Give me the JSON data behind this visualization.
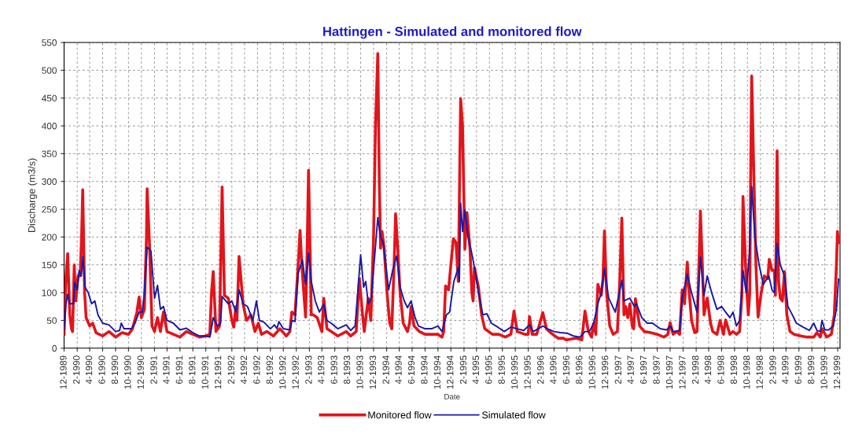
{
  "chart_data": {
    "type": "line",
    "title": "Hattingen - Simulated and monitored flow",
    "xlabel": "Date",
    "ylabel": "Discharge (m3/s)",
    "xlim": [
      "1989-12-01",
      "1999-12-12"
    ],
    "ylim": [
      0,
      550
    ],
    "yticks": [
      0,
      50,
      100,
      150,
      200,
      250,
      300,
      350,
      400,
      450,
      500,
      550
    ],
    "xticks": [
      {
        "value": "1989-12",
        "label": "12-1989"
      },
      {
        "value": "1990-02",
        "label": "2-1990"
      },
      {
        "value": "1990-04",
        "label": "4-1990"
      },
      {
        "value": "1990-06",
        "label": "6-1990"
      },
      {
        "value": "1990-08",
        "label": "8-1990"
      },
      {
        "value": "1990-10",
        "label": "10-1990"
      },
      {
        "value": "1990-12",
        "label": "12-1990"
      },
      {
        "value": "1991-02",
        "label": "2-1991"
      },
      {
        "value": "1991-04",
        "label": "4-1991"
      },
      {
        "value": "1991-06",
        "label": "6-1991"
      },
      {
        "value": "1991-08",
        "label": "8-1991"
      },
      {
        "value": "1991-10",
        "label": "10-1991"
      },
      {
        "value": "1991-12",
        "label": "12-1991"
      },
      {
        "value": "1992-02",
        "label": "2-1992"
      },
      {
        "value": "1992-04",
        "label": "4-1992"
      },
      {
        "value": "1992-06",
        "label": "6-1992"
      },
      {
        "value": "1992-08",
        "label": "8-1992"
      },
      {
        "value": "1992-10",
        "label": "10-1992"
      },
      {
        "value": "1992-12",
        "label": "12-1992"
      },
      {
        "value": "1993-02",
        "label": "2-1993"
      },
      {
        "value": "1993-04",
        "label": "4-1993"
      },
      {
        "value": "1993-06",
        "label": "6-1993"
      },
      {
        "value": "1993-08",
        "label": "8-1993"
      },
      {
        "value": "1993-10",
        "label": "10-1993"
      },
      {
        "value": "1993-12",
        "label": "12-1993"
      },
      {
        "value": "1994-02",
        "label": "2-1994"
      },
      {
        "value": "1994-04",
        "label": "4-1994"
      },
      {
        "value": "1994-06",
        "label": "6-1994"
      },
      {
        "value": "1994-08",
        "label": "8-1994"
      },
      {
        "value": "1994-10",
        "label": "10-1994"
      },
      {
        "value": "1994-12",
        "label": "12-1994"
      },
      {
        "value": "1995-02",
        "label": "2-1995"
      },
      {
        "value": "1995-04",
        "label": "4-1995"
      },
      {
        "value": "1995-06",
        "label": "6-1995"
      },
      {
        "value": "1995-08",
        "label": "8-1995"
      },
      {
        "value": "1995-10",
        "label": "10-1995"
      },
      {
        "value": "1995-12",
        "label": "12-1995"
      },
      {
        "value": "1996-02",
        "label": "2-1996"
      },
      {
        "value": "1996-04",
        "label": "4-1996"
      },
      {
        "value": "1996-06",
        "label": "6-1996"
      },
      {
        "value": "1996-08",
        "label": "8-1996"
      },
      {
        "value": "1996-10",
        "label": "10-1996"
      },
      {
        "value": "1996-12",
        "label": "12-1996"
      },
      {
        "value": "1997-02",
        "label": "2-1997"
      },
      {
        "value": "1997-04",
        "label": "4-1997"
      },
      {
        "value": "1997-06",
        "label": "6-1997"
      },
      {
        "value": "1997-08",
        "label": "8-1997"
      },
      {
        "value": "1997-10",
        "label": "10-1997"
      },
      {
        "value": "1997-12",
        "label": "12-1997"
      },
      {
        "value": "1998-02",
        "label": "2-1998"
      },
      {
        "value": "1998-04",
        "label": "4-1998"
      },
      {
        "value": "1998-06",
        "label": "6-1998"
      },
      {
        "value": "1998-08",
        "label": "8-1998"
      },
      {
        "value": "1998-10",
        "label": "10-1998"
      },
      {
        "value": "1998-12",
        "label": "12-1998"
      },
      {
        "value": "1999-02",
        "label": "2-1999"
      },
      {
        "value": "1999-04",
        "label": "4-1999"
      },
      {
        "value": "1999-06",
        "label": "6-1999"
      },
      {
        "value": "1999-08",
        "label": "8-1999"
      },
      {
        "value": "1999-10",
        "label": "10-1999"
      },
      {
        "value": "1999-12",
        "label": "12-1999"
      }
    ],
    "grid": true,
    "legend": "bottom",
    "line_style": "solid",
    "marker": "none",
    "series": [
      {
        "name": "Monitored flow",
        "color": "#e3141b",
        "x": [
          "1989-12-01",
          "1989-12-10",
          "1989-12-18",
          "1989-12-28",
          "1990-01-05",
          "1990-01-10",
          "1990-01-18",
          "1990-01-25",
          "1990-02-05",
          "1990-02-15",
          "1990-02-22",
          "1990-02-27",
          "1990-03-08",
          "1990-03-15",
          "1990-04-01",
          "1990-04-15",
          "1990-05-01",
          "1990-06-01",
          "1990-07-01",
          "1990-08-01",
          "1990-09-01",
          "1990-10-01",
          "1990-10-20",
          "1990-11-10",
          "1990-11-20",
          "1990-12-01",
          "1990-12-15",
          "1990-12-25",
          "1990-12-28",
          "1991-01-08",
          "1991-01-20",
          "1991-02-01",
          "1991-02-15",
          "1991-03-01",
          "1991-03-15",
          "1991-04-01",
          "1991-05-01",
          "1991-06-01",
          "1991-07-01",
          "1991-08-01",
          "1991-09-01",
          "1991-10-01",
          "1991-10-20",
          "1991-10-28",
          "1991-11-05",
          "1991-11-18",
          "1991-12-05",
          "1991-12-17",
          "1991-12-28",
          "1992-01-15",
          "1992-02-01",
          "1992-02-10",
          "1992-02-20",
          "1992-02-25",
          "1992-03-06",
          "1992-03-25",
          "1992-04-10",
          "1992-05-01",
          "1992-05-20",
          "1992-06-05",
          "1992-06-20",
          "1992-07-15",
          "1992-08-15",
          "1992-09-15",
          "1992-10-15",
          "1992-11-01",
          "1992-11-10",
          "1992-11-25",
          "1992-12-10",
          "1992-12-19",
          "1992-12-28",
          "1993-01-14",
          "1993-01-20",
          "1993-01-28",
          "1993-02-10",
          "1993-02-20",
          "1993-03-10",
          "1993-04-01",
          "1993-04-10",
          "1993-04-25",
          "1993-05-15",
          "1993-06-15",
          "1993-07-25",
          "1993-08-15",
          "1993-09-10",
          "1993-09-25",
          "1993-10-10",
          "1993-10-18",
          "1993-11-06",
          "1993-11-18",
          "1993-12-01",
          "1993-12-10",
          "1993-12-21",
          "1993-12-28",
          "1994-01-03",
          "1994-01-10",
          "1994-01-20",
          "1994-02-03",
          "1994-02-15",
          "1994-02-25",
          "1994-03-08",
          "1994-03-15",
          "1994-03-25",
          "1994-04-05",
          "1994-04-20",
          "1994-05-10",
          "1994-05-20",
          "1994-05-27",
          "1994-06-10",
          "1994-07-05",
          "1994-08-01",
          "1994-09-01",
          "1994-10-01",
          "1994-10-20",
          "1994-10-28",
          "1994-11-06",
          "1994-11-20",
          "1994-12-01",
          "1994-12-13",
          "1994-12-25",
          "1995-01-05",
          "1995-01-16",
          "1995-01-25",
          "1995-02-05",
          "1995-02-15",
          "1995-03-01",
          "1995-03-10",
          "1995-03-16",
          "1995-03-22",
          "1995-04-10",
          "1995-04-25",
          "1995-05-10",
          "1995-06-15",
          "1995-07-15",
          "1995-08-15",
          "1995-09-10",
          "1995-09-25",
          "1995-10-10",
          "1995-11-15",
          "1995-12-01",
          "1995-12-07",
          "1995-12-20",
          "1996-01-10",
          "1996-02-08",
          "1996-02-25",
          "1996-03-10",
          "1996-03-25",
          "1996-04-20",
          "1996-05-15",
          "1996-05-28",
          "1996-07-15",
          "1996-08-10",
          "1996-08-25",
          "1996-09-10",
          "1996-09-25",
          "1996-10-05",
          "1996-10-15",
          "1996-10-25",
          "1996-11-10",
          "1996-11-18",
          "1996-11-25",
          "1996-12-05",
          "1996-12-20",
          "1997-01-05",
          "1997-01-25",
          "1997-02-05",
          "1997-02-15",
          "1997-02-25",
          "1997-03-05",
          "1997-03-15",
          "1997-03-25",
          "1997-04-05",
          "1997-04-12",
          "1997-04-20",
          "1997-05-10",
          "1997-06-01",
          "1997-07-01",
          "1997-08-01",
          "1997-09-01",
          "1997-09-20",
          "1997-10-01",
          "1997-10-15",
          "1997-11-01",
          "1997-11-15",
          "1997-11-27",
          "1997-12-08",
          "1997-12-21",
          "1997-12-28",
          "1998-01-10",
          "1998-01-25",
          "1998-02-05",
          "1998-02-14",
          "1998-02-21",
          "1998-03-02",
          "1998-03-10",
          "1998-03-25",
          "1998-04-10",
          "1998-04-20",
          "1998-05-10",
          "1998-05-25",
          "1998-06-10",
          "1998-06-20",
          "1998-07-10",
          "1998-07-25",
          "1998-08-10",
          "1998-08-25",
          "1998-09-05",
          "1998-09-10",
          "1998-09-25",
          "1998-10-05",
          "1998-10-12",
          "1998-10-16",
          "1998-10-21",
          "1998-11-01",
          "1998-11-10",
          "1998-11-20",
          "1998-12-05",
          "1998-12-20",
          "1999-01-05",
          "1999-01-12",
          "1999-01-25",
          "1999-02-05",
          "1999-02-10",
          "1999-02-14",
          "1999-02-18",
          "1999-02-25",
          "1999-03-05",
          "1999-03-15",
          "1999-03-25",
          "1999-04-05",
          "1999-04-20",
          "1999-05-10",
          "1999-06-10",
          "1999-07-10",
          "1999-08-10",
          "1999-08-25",
          "1999-09-10",
          "1999-09-18",
          "1999-10-10",
          "1999-11-01",
          "1999-11-15",
          "1999-11-25",
          "1999-11-30",
          "1999-12-05"
        ],
        "values": [
          25,
          130,
          170,
          60,
          35,
          30,
          150,
          85,
          130,
          130,
          205,
          285,
          100,
          55,
          40,
          45,
          28,
          22,
          30,
          20,
          28,
          25,
          35,
          65,
          92,
          55,
          70,
          200,
          287,
          190,
          40,
          30,
          55,
          30,
          65,
          30,
          25,
          20,
          30,
          25,
          20,
          22,
          25,
          100,
          138,
          30,
          40,
          290,
          95,
          90,
          50,
          38,
          75,
          50,
          165,
          80,
          50,
          60,
          30,
          45,
          25,
          30,
          22,
          35,
          22,
          30,
          65,
          60,
          150,
          212,
          145,
          56,
          150,
          320,
          60,
          60,
          55,
          30,
          90,
          35,
          30,
          22,
          30,
          22,
          30,
          125,
          60,
          30,
          90,
          50,
          200,
          400,
          530,
          300,
          180,
          210,
          180,
          98,
          46,
          35,
          150,
          242,
          180,
          100,
          45,
          30,
          45,
          75,
          40,
          30,
          25,
          25,
          25,
          20,
          30,
          112,
          105,
          150,
          197,
          190,
          120,
          449,
          400,
          178,
          244,
          180,
          100,
          85,
          145,
          110,
          60,
          35,
          25,
          25,
          20,
          25,
          67,
          30,
          25,
          25,
          57,
          25,
          25,
          64,
          35,
          30,
          25,
          18,
          18,
          15,
          18,
          15,
          67,
          30,
          20,
          45,
          25,
          115,
          95,
          125,
          211,
          100,
          40,
          25,
          30,
          120,
          234,
          60,
          75,
          55,
          80,
          40,
          35,
          89,
          40,
          30,
          28,
          25,
          20,
          25,
          46,
          25,
          30,
          25,
          105,
          80,
          155,
          110,
          50,
          28,
          30,
          150,
          247,
          150,
          60,
          90,
          45,
          30,
          25,
          50,
          25,
          51,
          25,
          30,
          25,
          30,
          98,
          273,
          120,
          60,
          100,
          300,
          490,
          300,
          150,
          56,
          100,
          130,
          125,
          160,
          140,
          140,
          95,
          200,
          355,
          120,
          90,
          85,
          138,
          60,
          30,
          25,
          22,
          20,
          20,
          28,
          20,
          35,
          20,
          25,
          60,
          150,
          210,
          190
        ]
      },
      {
        "name": "Simulated flow",
        "color": "#1a1aa6",
        "x": [
          "1989-12-01",
          "1989-12-10",
          "1989-12-18",
          "1989-12-28",
          "1990-01-15",
          "1990-01-20",
          "1990-02-01",
          "1990-02-10",
          "1990-02-20",
          "1990-02-28",
          "1990-03-10",
          "1990-03-25",
          "1990-04-10",
          "1990-04-25",
          "1990-05-10",
          "1990-06-01",
          "1990-07-01",
          "1990-08-01",
          "1990-08-20",
          "1990-08-28",
          "1990-09-10",
          "1990-10-15",
          "1990-11-01",
          "1990-11-20",
          "1990-12-05",
          "1990-12-15",
          "1990-12-28",
          "1991-01-15",
          "1991-02-01",
          "1991-02-15",
          "1991-03-01",
          "1991-03-15",
          "1991-04-01",
          "1991-05-01",
          "1991-06-01",
          "1991-07-01",
          "1991-08-01",
          "1991-09-01",
          "1991-10-01",
          "1991-10-20",
          "1991-11-01",
          "1991-11-05",
          "1991-11-25",
          "1991-12-10",
          "1991-12-17",
          "1992-01-15",
          "1992-02-01",
          "1992-02-20",
          "1992-03-06",
          "1992-03-25",
          "1992-04-15",
          "1992-05-10",
          "1992-05-27",
          "1992-06-10",
          "1992-07-01",
          "1992-08-01",
          "1992-08-20",
          "1992-09-01",
          "1992-09-10",
          "1992-10-01",
          "1992-11-01",
          "1992-11-10",
          "1992-11-25",
          "1992-12-10",
          "1992-12-30",
          "1993-01-14",
          "1993-01-28",
          "1993-02-10",
          "1993-03-01",
          "1993-03-20",
          "1993-04-10",
          "1993-04-25",
          "1993-05-15",
          "1993-06-15",
          "1993-07-25",
          "1993-08-15",
          "1993-09-05",
          "1993-10-01",
          "1993-10-15",
          "1993-10-25",
          "1993-11-06",
          "1993-11-20",
          "1993-12-05",
          "1993-12-21",
          "1994-01-03",
          "1994-01-15",
          "1994-01-28",
          "1994-02-10",
          "1994-03-01",
          "1994-03-20",
          "1994-04-05",
          "1994-04-25",
          "1994-05-10",
          "1994-05-27",
          "1994-06-15",
          "1994-07-01",
          "1994-08-01",
          "1994-09-01",
          "1994-10-01",
          "1994-10-20",
          "1994-11-10",
          "1994-11-25",
          "1994-12-15",
          "1995-01-05",
          "1995-01-10",
          "1995-01-16",
          "1995-01-25",
          "1995-02-05",
          "1995-02-20",
          "1995-03-10",
          "1995-03-25",
          "1995-04-10",
          "1995-05-01",
          "1995-05-20",
          "1995-06-10",
          "1995-07-10",
          "1995-08-10",
          "1995-09-10",
          "1995-10-10",
          "1995-11-10",
          "1995-12-07",
          "1995-12-25",
          "1996-02-08",
          "1996-03-01",
          "1996-04-01",
          "1996-05-01",
          "1996-06-01",
          "1996-07-01",
          "1996-08-01",
          "1996-08-25",
          "1996-09-15",
          "1996-10-05",
          "1996-10-25",
          "1996-11-10",
          "1996-11-25",
          "1996-12-15",
          "1997-01-15",
          "1997-02-15",
          "1997-02-25",
          "1997-03-25",
          "1997-04-15",
          "1997-04-25",
          "1997-05-20",
          "1997-06-15",
          "1997-07-10",
          "1997-08-15",
          "1997-09-15",
          "1997-10-01",
          "1997-10-15",
          "1997-11-15",
          "1997-11-27",
          "1997-12-21",
          "1998-01-10",
          "1998-02-05",
          "1998-02-21",
          "1998-03-10",
          "1998-03-25",
          "1998-04-15",
          "1998-05-10",
          "1998-06-01",
          "1998-06-20",
          "1998-07-10",
          "1998-07-25",
          "1998-08-10",
          "1998-08-25",
          "1998-09-10",
          "1998-09-25",
          "1998-10-10",
          "1998-10-21",
          "1998-11-05",
          "1998-11-25",
          "1998-12-15",
          "1999-01-10",
          "1999-01-25",
          "1999-02-05",
          "1999-02-18",
          "1999-03-05",
          "1999-03-25",
          "1999-04-10",
          "1999-05-01",
          "1999-05-20",
          "1999-06-20",
          "1999-07-20",
          "1999-08-10",
          "1999-08-25",
          "1999-09-10",
          "1999-09-18",
          "1999-10-01",
          "1999-10-20",
          "1999-11-10",
          "1999-11-25",
          "1999-12-05"
        ],
        "values": [
          35,
          80,
          97,
          80,
          80,
          118,
          105,
          140,
          130,
          165,
          110,
          100,
          80,
          85,
          60,
          45,
          42,
          30,
          32,
          45,
          35,
          35,
          45,
          65,
          65,
          100,
          182,
          175,
          90,
          113,
          70,
          75,
          50,
          45,
          33,
          36,
          28,
          22,
          22,
          20,
          45,
          55,
          40,
          45,
          93,
          80,
          85,
          65,
          105,
          80,
          75,
          50,
          85,
          50,
          47,
          35,
          42,
          35,
          48,
          35,
          33,
          50,
          48,
          135,
          159,
          115,
          171,
          120,
          85,
          65,
          79,
          50,
          45,
          35,
          42,
          32,
          40,
          168,
          110,
          120,
          80,
          90,
          160,
          235,
          200,
          190,
          150,
          105,
          140,
          166,
          110,
          85,
          73,
          85,
          55,
          40,
          35,
          35,
          40,
          30,
          60,
          65,
          120,
          145,
          120,
          261,
          210,
          249,
          200,
          170,
          140,
          100,
          60,
          62,
          45,
          38,
          30,
          38,
          35,
          32,
          42,
          30,
          40,
          35,
          30,
          28,
          27,
          22,
          20,
          30,
          30,
          45,
          80,
          100,
          143,
          90,
          65,
          122,
          85,
          90,
          75,
          80,
          55,
          45,
          45,
          35,
          33,
          40,
          30,
          32,
          90,
          133,
          100,
          65,
          164,
          95,
          130,
          100,
          70,
          75,
          65,
          55,
          65,
          40,
          50,
          140,
          100,
          170,
          291,
          200,
          150,
          115,
          130,
          105,
          100,
          189,
          150,
          130,
          75,
          60,
          45,
          38,
          32,
          45,
          32,
          30,
          50,
          33,
          33,
          40,
          70,
          124
        ]
      }
    ]
  }
}
